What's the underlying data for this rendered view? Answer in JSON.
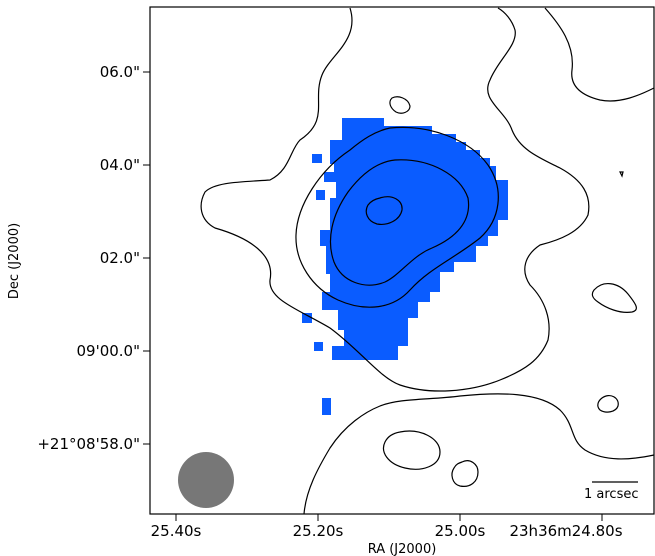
{
  "figure": {
    "x_axis_label": "RA (J2000)",
    "y_axis_label": "Dec (J2000)",
    "x_tick_labels": [
      "25.40s",
      "25.20s",
      "25.00s",
      "23h36m24.80s"
    ],
    "y_tick_labels": [
      "06.0\"",
      "04.0\"",
      "02.0\"",
      "09'00.0\"",
      "+21°08'58.0\""
    ],
    "scale_bar_label": "1 arcsec",
    "colors": {
      "emission": "#0a5cff",
      "beam": "#777777",
      "contour": "#000000"
    },
    "elements": [
      "blue emission region",
      "black contour lines",
      "grey beam ellipse",
      "scale bar"
    ]
  }
}
